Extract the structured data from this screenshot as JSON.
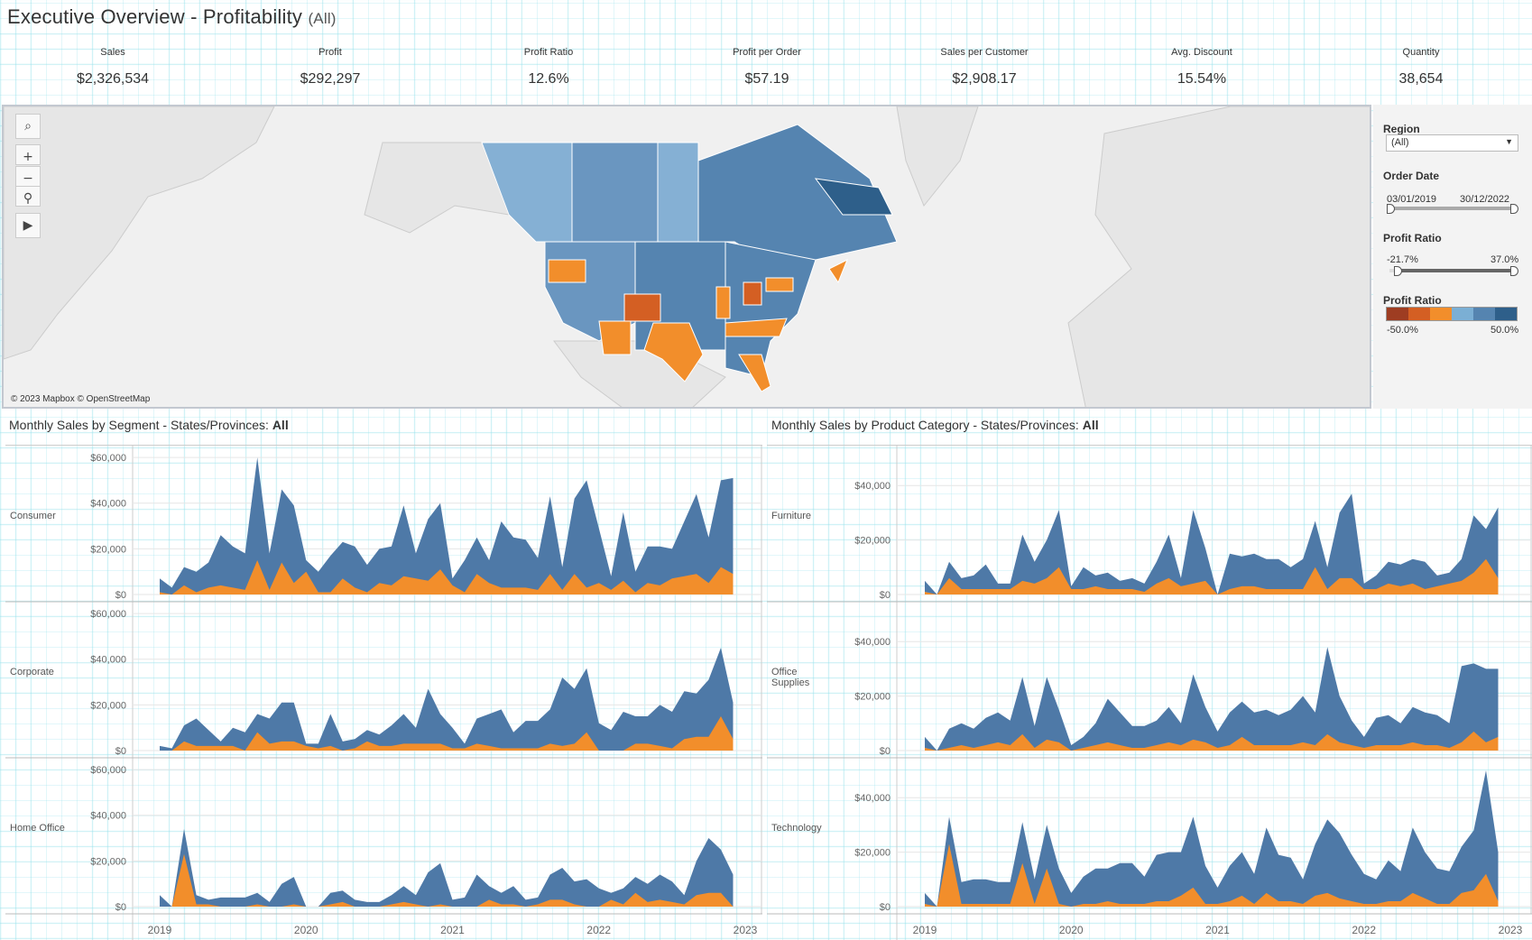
{
  "header": {
    "title": "Executive Overview - Profitability",
    "filter_suffix": "(All)"
  },
  "kpis": [
    {
      "label": "Sales",
      "value": "$2,326,534"
    },
    {
      "label": "Profit",
      "value": "$292,297"
    },
    {
      "label": "Profit Ratio",
      "value": "12.6%"
    },
    {
      "label": "Profit per Order",
      "value": "$57.19"
    },
    {
      "label": "Sales per Customer",
      "value": "$2,908.17"
    },
    {
      "label": "Avg. Discount",
      "value": "15.54%"
    },
    {
      "label": "Quantity",
      "value": "38,654"
    }
  ],
  "map": {
    "credit": "© 2023 Mapbox © OpenStreetMap",
    "controls": [
      "search-icon",
      "zoom-in-icon",
      "zoom-out-icon",
      "pin-icon",
      "play-icon"
    ],
    "control_glyphs": [
      "⌕",
      "+",
      "−",
      "⚲",
      "▶"
    ]
  },
  "filters": {
    "region": {
      "label": "Region",
      "value": "(All)"
    },
    "order_date": {
      "label": "Order Date",
      "start": "03/01/2019",
      "end": "30/12/2022"
    },
    "profit_ratio_filter": {
      "label": "Profit Ratio",
      "min": "-21.7%",
      "max": "37.0%",
      "range_fraction": [
        0.06,
        1.0
      ]
    },
    "profit_ratio_legend": {
      "label": "Profit Ratio",
      "min": "-50.0%",
      "max": "50.0%",
      "colors": [
        "#9E3D22",
        "#D45F23",
        "#F28E2B",
        "#7BAFD4",
        "#5584B0",
        "#2E5F8A"
      ]
    }
  },
  "colors": {
    "sales": "#4E79A7",
    "profit": "#F28E2B"
  },
  "chart_data": [
    {
      "type": "area",
      "title": "Monthly Sales by Segment - States/Provinces:",
      "title_value": "All",
      "value_unit": "thousands USD",
      "x_start": "2019-01",
      "x_ticks": [
        "2019",
        "2020",
        "2021",
        "2022",
        "2023"
      ],
      "y_ticks": [
        "$0",
        "$20,000",
        "$40,000",
        "$60,000"
      ],
      "ylim": [
        0,
        62
      ],
      "panels": [
        {
          "name": "Consumer",
          "sales": [
            7,
            3,
            12,
            10,
            14,
            26,
            21,
            18,
            60,
            18,
            46,
            39,
            15,
            10,
            17,
            23,
            21,
            13,
            20,
            21,
            39,
            18,
            33,
            40,
            7,
            15,
            25,
            15,
            32,
            25,
            24,
            16,
            43,
            12,
            42,
            50,
            29,
            8,
            36,
            10,
            21,
            21,
            20,
            32,
            44,
            25,
            50,
            51
          ],
          "profit": [
            1,
            0,
            4,
            1,
            3,
            4,
            3,
            2,
            15,
            2,
            14,
            5,
            10,
            1,
            1,
            7,
            3,
            1,
            5,
            4,
            8,
            7,
            6,
            11,
            4,
            1,
            9,
            5,
            3,
            3,
            3,
            2,
            9,
            2,
            9,
            3,
            5,
            2,
            6,
            1,
            5,
            4,
            7,
            8,
            9,
            5,
            12,
            9
          ]
        },
        {
          "name": "Corporate",
          "sales": [
            2,
            1,
            11,
            14,
            9,
            4,
            10,
            8,
            16,
            14,
            21,
            21,
            3,
            3,
            16,
            4,
            5,
            9,
            7,
            11,
            16,
            10,
            27,
            16,
            10,
            3,
            14,
            16,
            18,
            8,
            13,
            13,
            18,
            32,
            27,
            36,
            12,
            9,
            17,
            15,
            15,
            20,
            17,
            26,
            25,
            31,
            45,
            21
          ],
          "profit": [
            0,
            0,
            4,
            2,
            2,
            2,
            2,
            0,
            8,
            3,
            4,
            4,
            2,
            1,
            2,
            0,
            1,
            4,
            2,
            2,
            3,
            3,
            3,
            3,
            1,
            1,
            3,
            2,
            1,
            1,
            1,
            1,
            3,
            2,
            3,
            8,
            0,
            0,
            0,
            3,
            3,
            2,
            1,
            5,
            6,
            6,
            15,
            5
          ]
        },
        {
          "name": "Home Office",
          "sales": [
            5,
            0,
            34,
            5,
            3,
            4,
            4,
            4,
            6,
            2,
            10,
            13,
            0,
            0,
            6,
            7,
            3,
            2,
            2,
            5,
            9,
            5,
            15,
            19,
            3,
            4,
            14,
            9,
            6,
            9,
            3,
            4,
            14,
            17,
            11,
            12,
            8,
            6,
            8,
            13,
            10,
            14,
            11,
            5,
            20,
            30,
            25,
            14
          ],
          "profit": [
            0,
            0,
            23,
            1,
            1,
            0,
            0,
            0,
            1,
            0,
            0,
            1,
            0,
            0,
            1,
            2,
            0,
            0,
            0,
            1,
            2,
            1,
            0,
            1,
            0,
            0,
            0,
            3,
            1,
            1,
            0,
            1,
            3,
            3,
            1,
            0,
            0,
            3,
            1,
            6,
            2,
            3,
            2,
            1,
            5,
            6,
            6,
            0
          ]
        }
      ]
    },
    {
      "type": "area",
      "title": "Monthly Sales by Product Category - States/Provinces:",
      "title_value": "All",
      "value_unit": "thousands USD",
      "x_start": "2019-01",
      "x_ticks": [
        "2019",
        "2020",
        "2021",
        "2022",
        "2023"
      ],
      "y_ticks": [
        "$0",
        "$20,000",
        "$40,000"
      ],
      "ylim": [
        0,
        52
      ],
      "panels": [
        {
          "name": "Furniture",
          "sales": [
            5,
            0,
            12,
            6,
            7,
            11,
            4,
            4,
            22,
            12,
            20,
            31,
            3,
            10,
            7,
            8,
            5,
            6,
            4,
            12,
            22,
            6,
            31,
            17,
            0,
            15,
            14,
            15,
            13,
            13,
            10,
            13,
            27,
            10,
            30,
            37,
            4,
            7,
            12,
            11,
            13,
            12,
            7,
            8,
            13,
            29,
            24,
            32
          ],
          "profit": [
            1,
            0,
            6,
            2,
            2,
            2,
            2,
            2,
            5,
            4,
            6,
            10,
            2,
            2,
            3,
            2,
            2,
            2,
            1,
            4,
            6,
            3,
            4,
            5,
            0,
            2,
            3,
            3,
            2,
            2,
            2,
            2,
            10,
            2,
            6,
            6,
            2,
            2,
            4,
            3,
            4,
            2,
            3,
            4,
            5,
            8,
            13,
            6
          ]
        },
        {
          "name": "Office Supplies",
          "sales": [
            5,
            0,
            8,
            10,
            8,
            12,
            14,
            11,
            27,
            9,
            27,
            15,
            2,
            5,
            10,
            19,
            14,
            9,
            9,
            11,
            16,
            10,
            28,
            16,
            7,
            14,
            18,
            14,
            15,
            13,
            15,
            20,
            14,
            38,
            20,
            11,
            5,
            12,
            13,
            10,
            16,
            14,
            13,
            10,
            31,
            32,
            30,
            30
          ],
          "profit": [
            1,
            0,
            1,
            2,
            1,
            2,
            3,
            2,
            6,
            1,
            4,
            3,
            0,
            1,
            2,
            3,
            2,
            1,
            1,
            2,
            3,
            2,
            4,
            3,
            1,
            2,
            5,
            2,
            2,
            2,
            2,
            3,
            2,
            6,
            3,
            2,
            1,
            2,
            2,
            2,
            3,
            2,
            2,
            1,
            3,
            7,
            3,
            5
          ]
        },
        {
          "name": "Technology",
          "sales": [
            5,
            0,
            33,
            9,
            10,
            10,
            9,
            9,
            31,
            10,
            30,
            14,
            5,
            11,
            14,
            14,
            16,
            16,
            11,
            19,
            20,
            20,
            33,
            15,
            7,
            15,
            20,
            12,
            29,
            19,
            18,
            10,
            23,
            32,
            27,
            19,
            12,
            10,
            17,
            13,
            29,
            20,
            14,
            13,
            22,
            28,
            50,
            20
          ],
          "profit": [
            1,
            0,
            23,
            1,
            1,
            1,
            1,
            1,
            16,
            1,
            14,
            1,
            0,
            1,
            1,
            2,
            1,
            1,
            1,
            2,
            2,
            4,
            7,
            1,
            1,
            2,
            4,
            1,
            5,
            2,
            2,
            1,
            4,
            5,
            3,
            2,
            1,
            1,
            2,
            2,
            5,
            3,
            1,
            1,
            5,
            6,
            12,
            2
          ]
        }
      ]
    }
  ]
}
